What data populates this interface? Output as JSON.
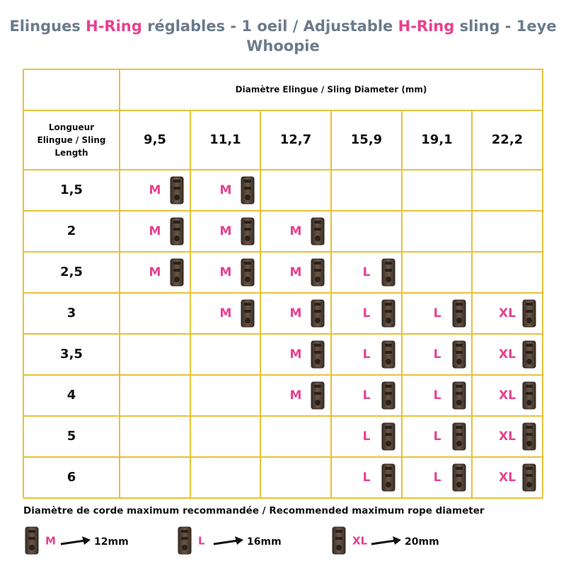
{
  "header": {
    "title_line1": [
      "Elingues ",
      "H-Ring",
      " réglables - 1 oeil / Adjustable ",
      "H-Ring",
      " sling - 1eye"
    ],
    "title_line2": "Whoopie"
  },
  "table": {
    "diameter_header": "Diamètre Elingue / Sling Diameter (mm)",
    "length_header": "Longueur Elingue / Sling Length",
    "columns": [
      "9,5",
      "11,1",
      "12,7",
      "15,9",
      "19,1",
      "22,2"
    ],
    "rows": [
      {
        "label": "1,5",
        "cells": [
          "M",
          "M",
          null,
          null,
          null,
          null
        ]
      },
      {
        "label": "2",
        "cells": [
          "M",
          "M",
          "M",
          null,
          null,
          null
        ]
      },
      {
        "label": "2,5",
        "cells": [
          "M",
          "M",
          "M",
          "L",
          null,
          null
        ]
      },
      {
        "label": "3",
        "cells": [
          null,
          "M",
          "M",
          "L",
          "L",
          "XL"
        ]
      },
      {
        "label": "3,5",
        "cells": [
          null,
          null,
          "M",
          "L",
          "L",
          "XL"
        ]
      },
      {
        "label": "4",
        "cells": [
          null,
          null,
          "M",
          "L",
          "L",
          "XL"
        ]
      },
      {
        "label": "5",
        "cells": [
          null,
          null,
          null,
          "L",
          "L",
          "XL"
        ]
      },
      {
        "label": "6",
        "cells": [
          null,
          null,
          null,
          "L",
          "L",
          "XL"
        ]
      }
    ]
  },
  "legend": {
    "title": "Diamètre de corde maximum recommandée / Recommended maximum rope diameter",
    "items": [
      {
        "size": "M",
        "value": "12mm"
      },
      {
        "size": "L",
        "value": "16mm"
      },
      {
        "size": "XL",
        "value": "20mm"
      }
    ]
  }
}
